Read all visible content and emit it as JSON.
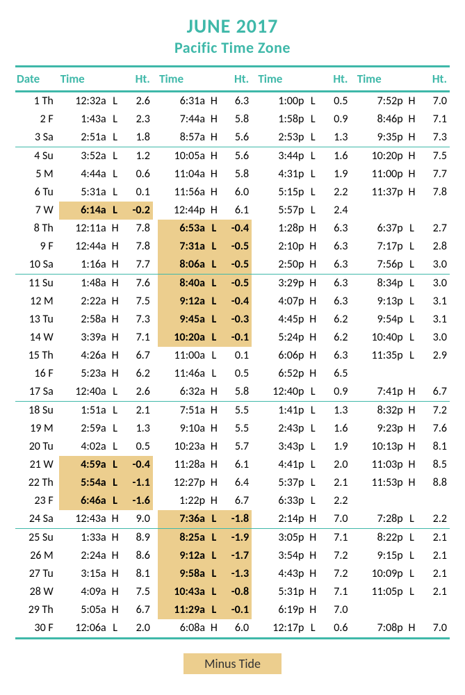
{
  "colors": {
    "teal": "#3fb8a9",
    "highlight": "#ecce8e",
    "text": "#333333"
  },
  "title": {
    "line1": "JUNE 2017",
    "line2": "Pacific Time Zone"
  },
  "headers": {
    "date": "Date",
    "time": "Time",
    "ht": "Ht."
  },
  "legend": "Minus Tide",
  "border": {
    "thick": 3,
    "thin": 1
  },
  "sections": [
    [
      {
        "date": "1 Th",
        "c": [
          [
            "12:32a",
            "L",
            "2.6",
            0
          ],
          [
            "6:31a",
            "H",
            "6.3",
            0
          ],
          [
            "1:00p",
            "L",
            "0.5",
            0
          ],
          [
            "7:52p",
            "H",
            "7.0",
            0
          ]
        ]
      },
      {
        "date": "2 F",
        "c": [
          [
            "1:43a",
            "L",
            "2.3",
            0
          ],
          [
            "7:44a",
            "H",
            "5.8",
            0
          ],
          [
            "1:58p",
            "L",
            "0.9",
            0
          ],
          [
            "8:46p",
            "H",
            "7.1",
            0
          ]
        ]
      },
      {
        "date": "3 Sa",
        "c": [
          [
            "2:51a",
            "L",
            "1.8",
            0
          ],
          [
            "8:57a",
            "H",
            "5.6",
            0
          ],
          [
            "2:53p",
            "L",
            "1.3",
            0
          ],
          [
            "9:35p",
            "H",
            "7.3",
            0
          ]
        ]
      }
    ],
    [
      {
        "date": "4 Su",
        "c": [
          [
            "3:52a",
            "L",
            "1.2",
            0
          ],
          [
            "10:05a",
            "H",
            "5.6",
            0
          ],
          [
            "3:44p",
            "L",
            "1.6",
            0
          ],
          [
            "10:20p",
            "H",
            "7.5",
            0
          ]
        ]
      },
      {
        "date": "5 M",
        "c": [
          [
            "4:44a",
            "L",
            "0.6",
            0
          ],
          [
            "11:04a",
            "H",
            "5.8",
            0
          ],
          [
            "4:31p",
            "L",
            "1.9",
            0
          ],
          [
            "11:00p",
            "H",
            "7.7",
            0
          ]
        ]
      },
      {
        "date": "6 Tu",
        "c": [
          [
            "5:31a",
            "L",
            "0.1",
            0
          ],
          [
            "11:56a",
            "H",
            "6.0",
            0
          ],
          [
            "5:15p",
            "L",
            "2.2",
            0
          ],
          [
            "11:37p",
            "H",
            "7.8",
            0
          ]
        ]
      },
      {
        "date": "7 W",
        "c": [
          [
            "6:14a",
            "L",
            "-0.2",
            1
          ],
          [
            "12:44p",
            "H",
            "6.1",
            0
          ],
          [
            "5:57p",
            "L",
            "2.4",
            0
          ],
          [
            "",
            "",
            "",
            0
          ]
        ]
      },
      {
        "date": "8 Th",
        "c": [
          [
            "12:11a",
            "H",
            "7.8",
            0
          ],
          [
            "6:53a",
            "L",
            "-0.4",
            1
          ],
          [
            "1:28p",
            "H",
            "6.3",
            0
          ],
          [
            "6:37p",
            "L",
            "2.7",
            0
          ]
        ]
      },
      {
        "date": "9 F",
        "c": [
          [
            "12:44a",
            "H",
            "7.8",
            0
          ],
          [
            "7:31a",
            "L",
            "-0.5",
            1
          ],
          [
            "2:10p",
            "H",
            "6.3",
            0
          ],
          [
            "7:17p",
            "L",
            "2.8",
            0
          ]
        ]
      },
      {
        "date": "10 Sa",
        "c": [
          [
            "1:16a",
            "H",
            "7.7",
            0
          ],
          [
            "8:06a",
            "L",
            "-0.5",
            1
          ],
          [
            "2:50p",
            "H",
            "6.3",
            0
          ],
          [
            "7:56p",
            "L",
            "3.0",
            0
          ]
        ]
      }
    ],
    [
      {
        "date": "11 Su",
        "c": [
          [
            "1:48a",
            "H",
            "7.6",
            0
          ],
          [
            "8:40a",
            "L",
            "-0.5",
            1
          ],
          [
            "3:29p",
            "H",
            "6.3",
            0
          ],
          [
            "8:34p",
            "L",
            "3.0",
            0
          ]
        ]
      },
      {
        "date": "12 M",
        "c": [
          [
            "2:22a",
            "H",
            "7.5",
            0
          ],
          [
            "9:12a",
            "L",
            "-0.4",
            1
          ],
          [
            "4:07p",
            "H",
            "6.3",
            0
          ],
          [
            "9:13p",
            "L",
            "3.1",
            0
          ]
        ]
      },
      {
        "date": "13 Tu",
        "c": [
          [
            "2:58a",
            "H",
            "7.3",
            0
          ],
          [
            "9:45a",
            "L",
            "-0.3",
            1
          ],
          [
            "4:45p",
            "H",
            "6.2",
            0
          ],
          [
            "9:54p",
            "L",
            "3.1",
            0
          ]
        ]
      },
      {
        "date": "14 W",
        "c": [
          [
            "3:39a",
            "H",
            "7.1",
            0
          ],
          [
            "10:20a",
            "L",
            "-0.1",
            1
          ],
          [
            "5:24p",
            "H",
            "6.2",
            0
          ],
          [
            "10:40p",
            "L",
            "3.0",
            0
          ]
        ]
      },
      {
        "date": "15 Th",
        "c": [
          [
            "4:26a",
            "H",
            "6.7",
            0
          ],
          [
            "11:00a",
            "L",
            "0.1",
            0
          ],
          [
            "6:06p",
            "H",
            "6.3",
            0
          ],
          [
            "11:35p",
            "L",
            "2.9",
            0
          ]
        ]
      },
      {
        "date": "16 F",
        "c": [
          [
            "5:23a",
            "H",
            "6.2",
            0
          ],
          [
            "11:46a",
            "L",
            "0.5",
            0
          ],
          [
            "6:52p",
            "H",
            "6.5",
            0
          ],
          [
            "",
            "",
            "",
            0
          ]
        ]
      },
      {
        "date": "17 Sa",
        "c": [
          [
            "12:40a",
            "L",
            "2.6",
            0
          ],
          [
            "6:32a",
            "H",
            "5.8",
            0
          ],
          [
            "12:40p",
            "L",
            "0.9",
            0
          ],
          [
            "7:41p",
            "H",
            "6.7",
            0
          ]
        ]
      }
    ],
    [
      {
        "date": "18 Su",
        "c": [
          [
            "1:51a",
            "L",
            "2.1",
            0
          ],
          [
            "7:51a",
            "H",
            "5.5",
            0
          ],
          [
            "1:41p",
            "L",
            "1.3",
            0
          ],
          [
            "8:32p",
            "H",
            "7.2",
            0
          ]
        ]
      },
      {
        "date": "19 M",
        "c": [
          [
            "2:59a",
            "L",
            "1.3",
            0
          ],
          [
            "9:10a",
            "H",
            "5.5",
            0
          ],
          [
            "2:43p",
            "L",
            "1.6",
            0
          ],
          [
            "9:23p",
            "H",
            "7.6",
            0
          ]
        ]
      },
      {
        "date": "20 Tu",
        "c": [
          [
            "4:02a",
            "L",
            "0.5",
            0
          ],
          [
            "10:23a",
            "H",
            "5.7",
            0
          ],
          [
            "3:43p",
            "L",
            "1.9",
            0
          ],
          [
            "10:13p",
            "H",
            "8.1",
            0
          ]
        ]
      },
      {
        "date": "21 W",
        "c": [
          [
            "4:59a",
            "L",
            "-0.4",
            1
          ],
          [
            "11:28a",
            "H",
            "6.1",
            0
          ],
          [
            "4:41p",
            "L",
            "2.0",
            0
          ],
          [
            "11:03p",
            "H",
            "8.5",
            0
          ]
        ]
      },
      {
        "date": "22 Th",
        "c": [
          [
            "5:54a",
            "L",
            "-1.1",
            1
          ],
          [
            "12:27p",
            "H",
            "6.4",
            0
          ],
          [
            "5:37p",
            "L",
            "2.1",
            0
          ],
          [
            "11:53p",
            "H",
            "8.8",
            0
          ]
        ]
      },
      {
        "date": "23 F",
        "c": [
          [
            "6:46a",
            "L",
            "-1.6",
            1
          ],
          [
            "1:22p",
            "H",
            "6.7",
            0
          ],
          [
            "6:33p",
            "L",
            "2.2",
            0
          ],
          [
            "",
            "",
            "",
            0
          ]
        ]
      },
      {
        "date": "24 Sa",
        "c": [
          [
            "12:43a",
            "H",
            "9.0",
            0
          ],
          [
            "7:36a",
            "L",
            "-1.8",
            1
          ],
          [
            "2:14p",
            "H",
            "7.0",
            0
          ],
          [
            "7:28p",
            "L",
            "2.2",
            0
          ]
        ]
      }
    ],
    [
      {
        "date": "25 Su",
        "c": [
          [
            "1:33a",
            "H",
            "8.9",
            0
          ],
          [
            "8:25a",
            "L",
            "-1.9",
            1
          ],
          [
            "3:05p",
            "H",
            "7.1",
            0
          ],
          [
            "8:22p",
            "L",
            "2.1",
            0
          ]
        ]
      },
      {
        "date": "26 M",
        "c": [
          [
            "2:24a",
            "H",
            "8.6",
            0
          ],
          [
            "9:12a",
            "L",
            "-1.7",
            1
          ],
          [
            "3:54p",
            "H",
            "7.2",
            0
          ],
          [
            "9:15p",
            "L",
            "2.1",
            0
          ]
        ]
      },
      {
        "date": "27 Tu",
        "c": [
          [
            "3:15a",
            "H",
            "8.1",
            0
          ],
          [
            "9:58a",
            "L",
            "-1.3",
            1
          ],
          [
            "4:43p",
            "H",
            "7.2",
            0
          ],
          [
            "10:09p",
            "L",
            "2.1",
            0
          ]
        ]
      },
      {
        "date": "28 W",
        "c": [
          [
            "4:09a",
            "H",
            "7.5",
            0
          ],
          [
            "10:43a",
            "L",
            "-0.8",
            1
          ],
          [
            "5:31p",
            "H",
            "7.1",
            0
          ],
          [
            "11:05p",
            "L",
            "2.1",
            0
          ]
        ]
      },
      {
        "date": "29 Th",
        "c": [
          [
            "5:05a",
            "H",
            "6.7",
            0
          ],
          [
            "11:29a",
            "L",
            "-0.1",
            1
          ],
          [
            "6:19p",
            "H",
            "7.0",
            0
          ],
          [
            "",
            "",
            "",
            0
          ]
        ]
      },
      {
        "date": "30 F",
        "c": [
          [
            "12:06a",
            "L",
            "2.0",
            0
          ],
          [
            "6:08a",
            "H",
            "6.0",
            0
          ],
          [
            "12:17p",
            "L",
            "0.6",
            0
          ],
          [
            "7:08p",
            "H",
            "7.0",
            0
          ]
        ]
      }
    ]
  ]
}
